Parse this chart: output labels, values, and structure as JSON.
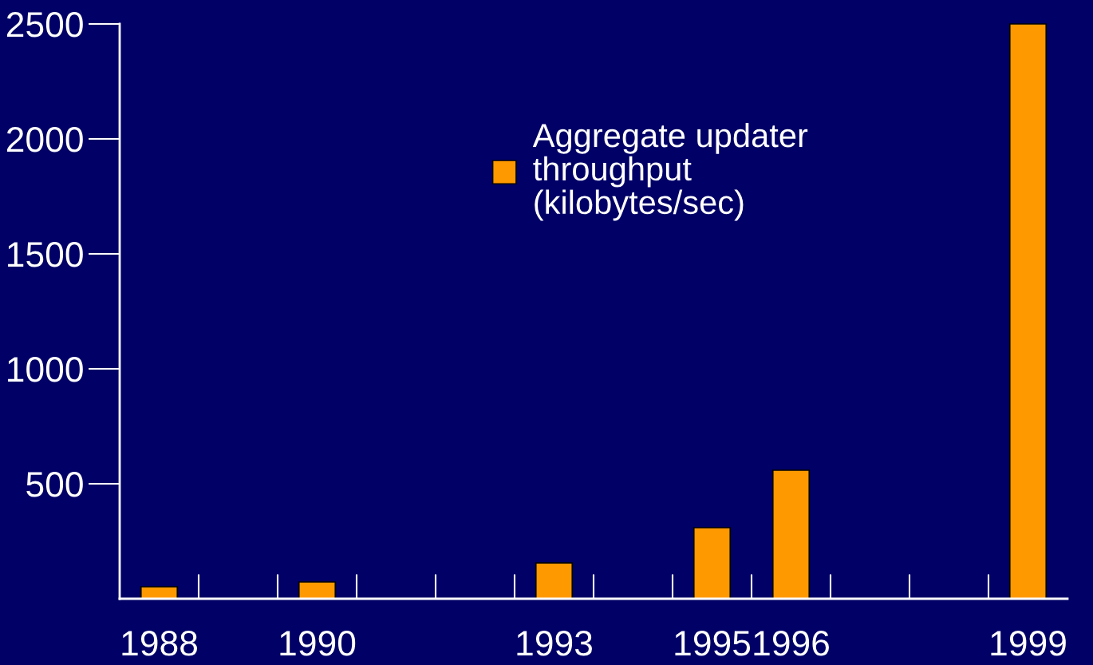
{
  "chart_data": {
    "type": "bar",
    "categories": [
      "1988",
      null,
      "1990",
      null,
      null,
      "1993",
      null,
      "1995",
      "1996",
      null,
      null,
      "1999"
    ],
    "series": [
      {
        "name": "Aggregate updater\nthroughput\n(kilobytes/sec)",
        "color": "#ff9900",
        "values": [
          52,
          null,
          73,
          null,
          null,
          156,
          null,
          309,
          559,
          null,
          null,
          2500
        ]
      }
    ],
    "ylim": [
      0,
      2500
    ],
    "yticks": [
      500,
      1000,
      1500,
      2000,
      2500
    ],
    "grid": false,
    "legend": "top"
  }
}
